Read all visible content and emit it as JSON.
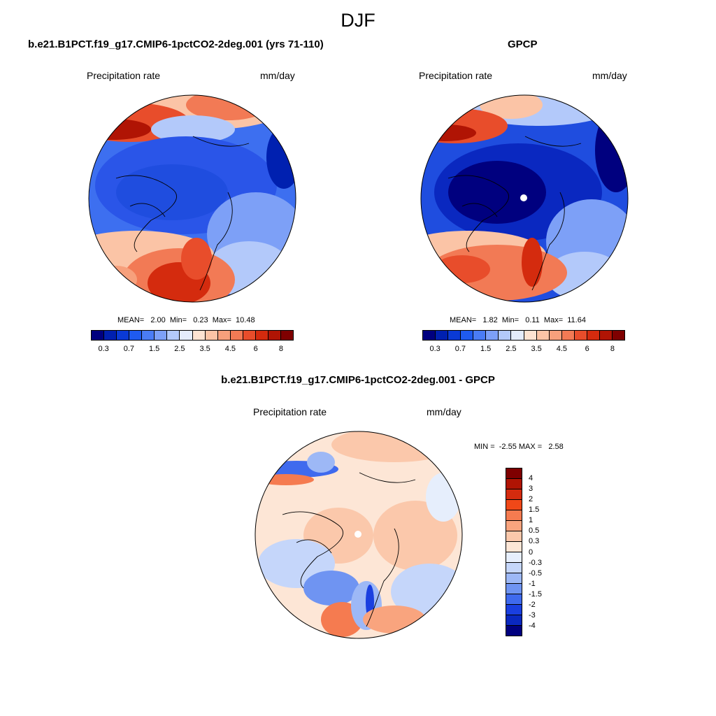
{
  "figure": {
    "title": "DJF"
  },
  "panels": [
    {
      "id": "model",
      "title": "b.e21.B1PCT.f19_g17.CMIP6-1pctCO2-2deg.001 (yrs 71-110)",
      "variable": "Precipitation rate",
      "units": "mm/day",
      "stats": "MEAN=   2.00  Min=   0.23  Max=  10.48"
    },
    {
      "id": "obs",
      "title": "GPCP",
      "variable": "Precipitation rate",
      "units": "mm/day",
      "stats": "MEAN=   1.82  Min=   0.11  Max=  11.64"
    },
    {
      "id": "diff",
      "title": "b.e21.B1PCT.f19_g17.CMIP6-1pctCO2-2deg.001 - GPCP",
      "variable": "Precipitation rate",
      "units": "mm/day",
      "stats": "MIN =  -2.55 MAX =   2.58"
    }
  ],
  "colorbar_abs": {
    "colors": [
      "#00007f",
      "#0020b0",
      "#0a3ad6",
      "#1f5bf0",
      "#4a7cf5",
      "#7da0f7",
      "#b3c9fa",
      "#e4ecfc",
      "#fde3d2",
      "#fbc4a6",
      "#f7a07c",
      "#f27a55",
      "#e84d2b",
      "#d42b0e",
      "#b01404",
      "#7f0000"
    ],
    "labels": [
      "0.3",
      "0.7",
      "1.5",
      "2.5",
      "3.5",
      "4.5",
      "6",
      "8"
    ]
  },
  "colorbar_diff": {
    "colors": [
      "#7f0000",
      "#b01404",
      "#d42b0e",
      "#f04818",
      "#f57b50",
      "#f9a47e",
      "#fbc8ab",
      "#fde6d6",
      "#e6eefc",
      "#c5d6fa",
      "#9db8f6",
      "#6f94f2",
      "#3f6aee",
      "#1a3fe0",
      "#0a28c0",
      "#00007f"
    ],
    "labels": [
      "4",
      "3",
      "2",
      "1.5",
      "1",
      "0.5",
      "0.3",
      "0",
      "-0.3",
      "-0.5",
      "-1",
      "-1.5",
      "-2",
      "-3",
      "-4"
    ]
  }
}
